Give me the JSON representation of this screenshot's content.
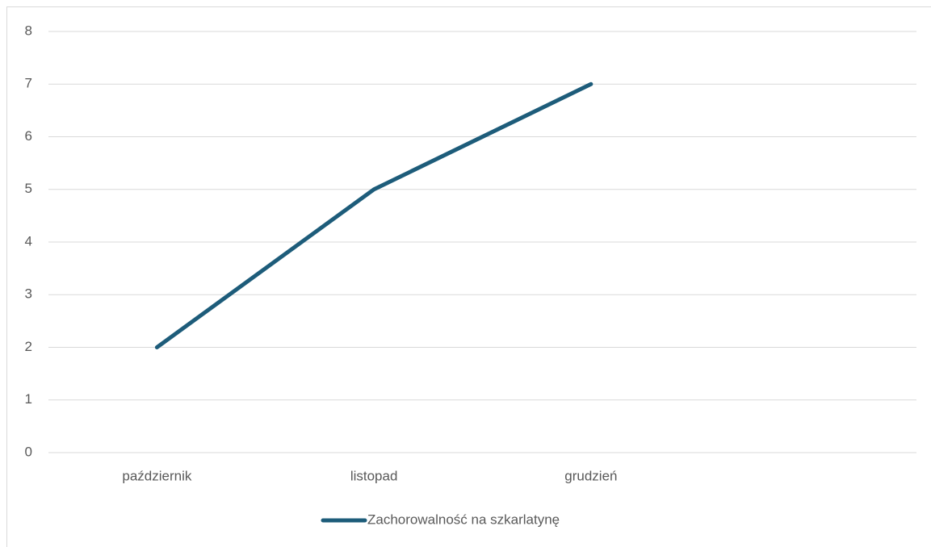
{
  "chart_data": {
    "type": "line",
    "categories": [
      "październik",
      "listopad",
      "grudzień",
      null
    ],
    "series": [
      {
        "name": "Zachorowalność na szkarlatynę",
        "color": "#1d5c7a",
        "values": [
          2,
          5,
          7,
          null
        ]
      }
    ],
    "ylim": [
      0,
      8
    ],
    "yticks": [
      0,
      1,
      2,
      3,
      4,
      5,
      6,
      7,
      8
    ],
    "grid": true,
    "legend": "bottom"
  }
}
